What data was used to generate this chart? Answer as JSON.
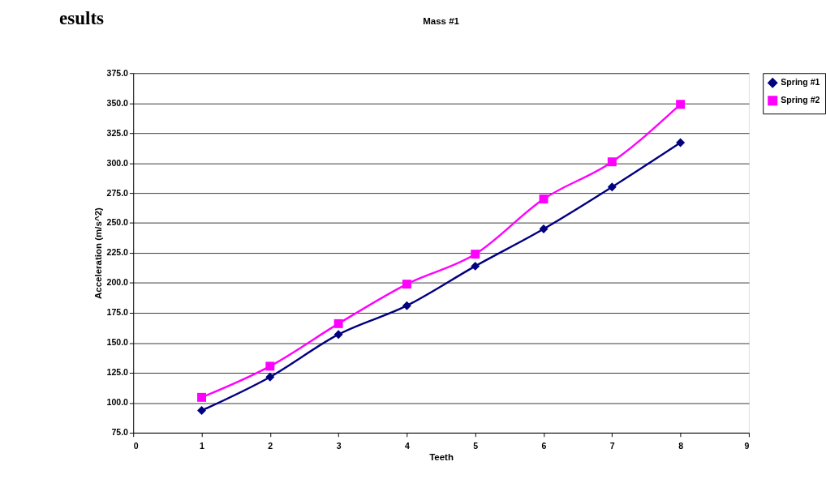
{
  "chart_data": {
    "type": "line",
    "title": "Mass #1",
    "xlabel": "Teeth",
    "ylabel": "Acceleration (m/s^2)",
    "annotations": [
      "esults"
    ],
    "x": [
      1,
      2,
      3,
      4,
      5,
      6,
      7,
      8
    ],
    "series": [
      {
        "name": "Spring #1",
        "color": "#000080",
        "marker": "diamond",
        "values": [
          93.5,
          121.5,
          157,
          181,
          214,
          245,
          280,
          317
        ]
      },
      {
        "name": "Spring #2",
        "color": "#ff00ff",
        "marker": "square",
        "values": [
          104.5,
          130.5,
          166,
          199,
          224,
          270,
          301,
          349
        ]
      }
    ],
    "xlim": [
      0,
      9
    ],
    "xticks": [
      0,
      1,
      2,
      3,
      4,
      5,
      6,
      7,
      8,
      9
    ],
    "ylim": [
      75,
      375
    ],
    "yticks": [
      {
        "value": 75,
        "label": "75.0"
      },
      {
        "value": 100,
        "label": "100.0"
      },
      {
        "value": 125,
        "label": "125.0"
      },
      {
        "value": 150,
        "label": "150.0"
      },
      {
        "value": 175,
        "label": "175.0"
      },
      {
        "value": 200,
        "label": "200.0"
      },
      {
        "value": 225,
        "label": "225.0"
      },
      {
        "value": 250,
        "label": "250.0"
      },
      {
        "value": 275,
        "label": "275.0"
      },
      {
        "value": 300,
        "label": "300.0"
      },
      {
        "value": 325,
        "label": "325.0"
      },
      {
        "value": 350,
        "label": "350.0"
      },
      {
        "value": 375,
        "label": "375.0"
      }
    ],
    "grid": "y",
    "legend": "right",
    "line_style": "solid"
  }
}
